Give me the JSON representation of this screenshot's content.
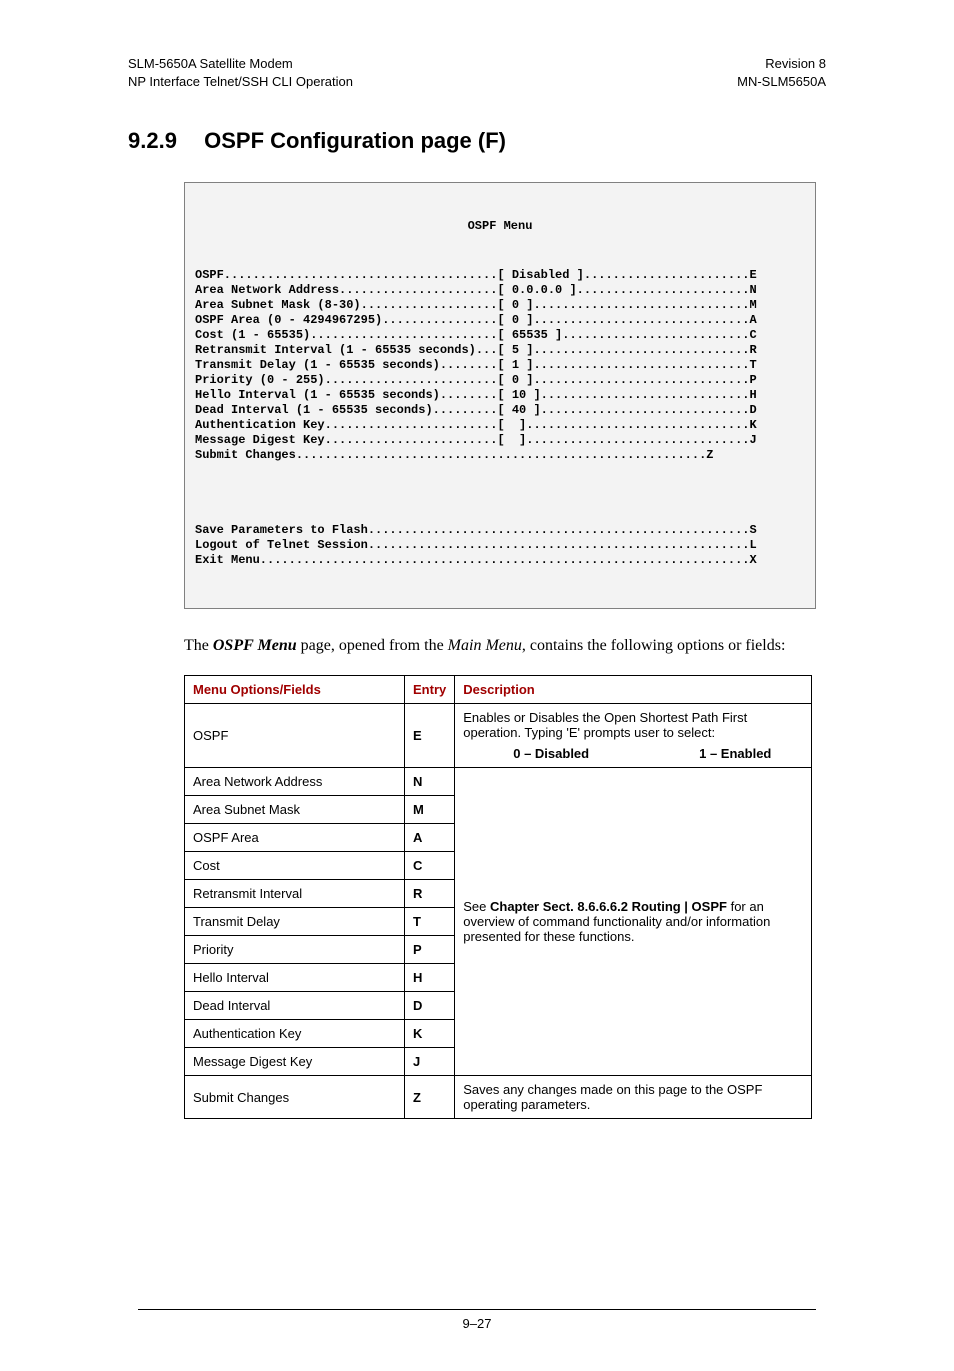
{
  "header": {
    "left_line1": "SLM-5650A Satellite Modem",
    "left_line2": "NP Interface Telnet/SSH CLI Operation",
    "right_line1": "Revision 8",
    "right_line2": "MN-SLM5650A"
  },
  "section": {
    "number": "9.2.9",
    "title": "OSPF Configuration page (F)"
  },
  "terminal": {
    "title": "OSPF Menu",
    "lines": [
      "OSPF......................................[ Disabled ].......................E",
      "Area Network Address......................[ 0.0.0.0 ]........................N",
      "Area Subnet Mask (8-30)...................[ 0 ]..............................M",
      "OSPF Area (0 - 4294967295)................[ 0 ]..............................A",
      "Cost (1 - 65535)..........................[ 65535 ]..........................C",
      "Retransmit Interval (1 - 65535 seconds)...[ 5 ]..............................R",
      "Transmit Delay (1 - 65535 seconds)........[ 1 ]..............................T",
      "Priority (0 - 255)........................[ 0 ]..............................P",
      "Hello Interval (1 - 65535 seconds)........[ 10 ].............................H",
      "Dead Interval (1 - 65535 seconds).........[ 40 ].............................D",
      "Authentication Key........................[  ]...............................K",
      "Message Digest Key........................[  ]...............................J",
      "Submit Changes.........................................................Z",
      "",
      "",
      "",
      "",
      "Save Parameters to Flash.....................................................S",
      "Logout of Telnet Session.....................................................L",
      "Exit Menu....................................................................X"
    ]
  },
  "intro": {
    "prefix": "The ",
    "menu_name": "OSPF Menu",
    "mid": " page, opened from the ",
    "main_menu": "Main Menu",
    "suffix": ", contains the following options or fields:"
  },
  "table": {
    "headers": {
      "c1": "Menu Options/Fields",
      "c2": "Entry",
      "c3": "Description"
    },
    "row_ospf": {
      "field": "OSPF",
      "entry": "E",
      "desc_line1": "Enables or Disables the Open Shortest Path First operation. Typing 'E' prompts user to select:",
      "choice0": "0 – Disabled",
      "choice1": "1 – Enabled"
    },
    "mid_desc": {
      "pre": "See ",
      "bold": "Chapter Sect. 8.6.6.6.2 Routing | OSPF",
      "post": " for an overview of command functionality and/or information presented for these functions."
    },
    "mid_rows": [
      {
        "field": "Area Network Address",
        "entry": "N"
      },
      {
        "field": "Area Subnet Mask",
        "entry": "M"
      },
      {
        "field": "OSPF Area",
        "entry": "A"
      },
      {
        "field": "Cost",
        "entry": "C"
      },
      {
        "field": "Retransmit Interval",
        "entry": "R"
      },
      {
        "field": "Transmit Delay",
        "entry": "T"
      },
      {
        "field": "Priority",
        "entry": "P"
      },
      {
        "field": "Hello Interval",
        "entry": "H"
      },
      {
        "field": "Dead Interval",
        "entry": "D"
      },
      {
        "field": "Authentication Key",
        "entry": "K"
      },
      {
        "field": "Message Digest Key",
        "entry": "J"
      }
    ],
    "row_submit": {
      "field": "Submit Changes",
      "entry": "Z",
      "desc": "Saves any changes made on this page to the OSPF operating parameters."
    }
  },
  "footer": {
    "page_num": "9–27"
  }
}
